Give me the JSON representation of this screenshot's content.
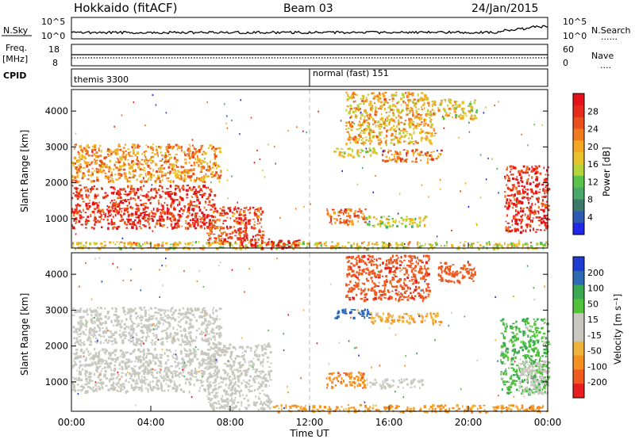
{
  "header": {
    "station": "Hokkaido (fitACF)",
    "beam": "Beam 03",
    "date": "24/Jan/2015"
  },
  "noise_panel": {
    "left_label": "N.Sky",
    "left_ticks": [
      "10^5",
      "10^0"
    ],
    "right_ticks": [
      "10^5",
      "10^0"
    ],
    "right_label": "N.Search",
    "right_legend_marker": "......"
  },
  "freq_panel": {
    "left_label_top": "Freq.",
    "left_label_unit": "[MHz]",
    "left_ticks": [
      "18",
      "8"
    ],
    "right_ticks": [
      "60",
      "0"
    ],
    "right_label": "Nave",
    "right_legend_marker": "...."
  },
  "cpid_panel": {
    "label": "CPID",
    "modes": [
      {
        "name": "themis 3300",
        "start_ut": "00:00"
      },
      {
        "name": "normal (fast) 151",
        "start_ut": "12:00"
      }
    ]
  },
  "x_axis": {
    "label": "Time UT",
    "ticks": [
      "00:00",
      "04:00",
      "08:00",
      "12:00",
      "16:00",
      "20:00",
      "00:00"
    ],
    "range_hours": [
      0,
      24
    ]
  },
  "colors": {
    "power_scale": [
      "#1e28e6",
      "#2c5ab4",
      "#3c7a6a",
      "#49a86a",
      "#59c24a",
      "#b7d23a",
      "#e8c22a",
      "#f5a623",
      "#f07a1e",
      "#ea4e1c",
      "#e82a1a",
      "#e6101a"
    ],
    "velocity_scale": [
      "#e81e1e",
      "#f05a1e",
      "#f5901e",
      "#f0b43c",
      "#c8c8c0",
      "#c8c8c0",
      "#52c23a",
      "#3aa850",
      "#2c6ab4",
      "#1e3cd2"
    ],
    "ground_scatter": "#c8c8c0"
  },
  "chart_data": [
    {
      "type": "heatmap",
      "title": "",
      "xlabel": "Time UT",
      "ylabel": "Slant Range [km]",
      "xlim_hours": [
        0,
        24
      ],
      "ylim_km": [
        180,
        4600
      ],
      "y_ticks": [
        "1000",
        "2000",
        "3000",
        "4000"
      ],
      "colorbar": {
        "label": "Power [dB]",
        "ticks": [
          "4",
          "8",
          "12",
          "16",
          "20",
          "24",
          "28"
        ],
        "range": [
          0,
          30
        ]
      },
      "regions": [
        {
          "t0": 0.0,
          "t1": 7.2,
          "r0": 750,
          "r1": 1950,
          "value": 26
        },
        {
          "t0": 6.8,
          "t1": 9.6,
          "r0": 350,
          "r1": 1350,
          "value": 24
        },
        {
          "t0": 0.0,
          "t1": 7.5,
          "r0": 2050,
          "r1": 3100,
          "value": 20
        },
        {
          "t0": 0.0,
          "t1": 24.0,
          "r0": 180,
          "r1": 380,
          "value": 16
        },
        {
          "t0": 8.5,
          "t1": 11.5,
          "r0": 200,
          "r1": 450,
          "value": 28
        },
        {
          "t0": 12.8,
          "t1": 14.8,
          "r0": 850,
          "r1": 1300,
          "value": 22
        },
        {
          "t0": 14.8,
          "t1": 17.8,
          "r0": 800,
          "r1": 1100,
          "value": 14
        },
        {
          "t0": 13.2,
          "t1": 15.6,
          "r0": 2750,
          "r1": 3000,
          "value": 16
        },
        {
          "t0": 15.6,
          "t1": 18.6,
          "r0": 2600,
          "r1": 2950,
          "value": 22
        },
        {
          "t0": 13.8,
          "t1": 18.3,
          "r0": 3100,
          "r1": 4550,
          "value": 18
        },
        {
          "t0": 18.4,
          "t1": 20.4,
          "r0": 3800,
          "r1": 4350,
          "value": 16
        },
        {
          "t0": 21.8,
          "t1": 24.0,
          "r0": 650,
          "r1": 2500,
          "value": 26
        }
      ]
    },
    {
      "type": "heatmap",
      "title": "",
      "xlabel": "Time UT",
      "ylabel": "Slant Range [km]",
      "xlim_hours": [
        0,
        24
      ],
      "ylim_km": [
        180,
        4600
      ],
      "y_ticks": [
        "1000",
        "2000",
        "3000",
        "4000"
      ],
      "colorbar": {
        "label": "Velocity [m s⁻¹]",
        "ticks": [
          "200",
          "100",
          "50",
          "15",
          "-15",
          "-50",
          "-100",
          "-200"
        ],
        "range": [
          -250,
          250
        ]
      },
      "regions": [
        {
          "t0": 0.0,
          "t1": 7.2,
          "r0": 750,
          "r1": 1950,
          "value": 0,
          "ground_scatter": true
        },
        {
          "t0": 6.8,
          "t1": 10.0,
          "r0": 250,
          "r1": 2100,
          "value": 0,
          "ground_scatter": true
        },
        {
          "t0": 0.0,
          "t1": 7.5,
          "r0": 2050,
          "r1": 3100,
          "value": 0,
          "ground_scatter": true
        },
        {
          "t0": 10.0,
          "t1": 24.0,
          "r0": 180,
          "r1": 380,
          "value": -60
        },
        {
          "t0": 12.8,
          "t1": 14.8,
          "r0": 850,
          "r1": 1300,
          "value": -80
        },
        {
          "t0": 14.8,
          "t1": 17.8,
          "r0": 850,
          "r1": 1100,
          "value": 0,
          "ground_scatter": true
        },
        {
          "t0": 13.2,
          "t1": 15.0,
          "r0": 2800,
          "r1": 3050,
          "value": 180
        },
        {
          "t0": 15.0,
          "t1": 18.6,
          "r0": 2650,
          "r1": 2950,
          "value": -40
        },
        {
          "t0": 13.8,
          "t1": 18.0,
          "r0": 3300,
          "r1": 4550,
          "value": -180
        },
        {
          "t0": 18.4,
          "t1": 20.4,
          "r0": 3800,
          "r1": 4350,
          "value": -150
        },
        {
          "t0": 21.6,
          "t1": 24.0,
          "r0": 700,
          "r1": 2800,
          "value": 40
        },
        {
          "t0": 22.5,
          "t1": 24.0,
          "r0": 700,
          "r1": 1600,
          "value": 0,
          "ground_scatter": true
        }
      ]
    }
  ]
}
